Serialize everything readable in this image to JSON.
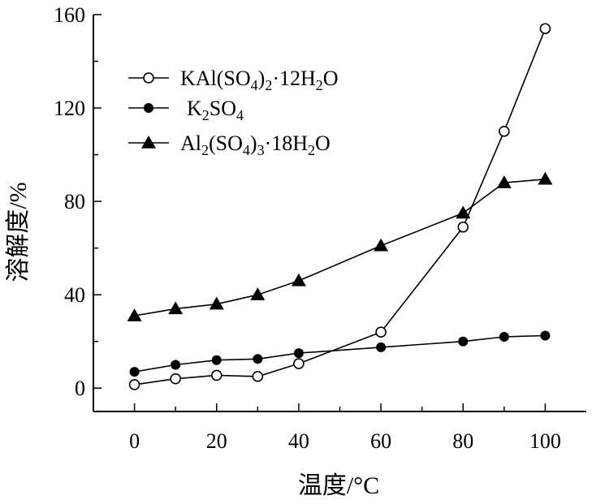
{
  "chart_data": {
    "type": "line",
    "xlabel": "温度/°C",
    "ylabel": "溶解度/%",
    "xlim": [
      -10,
      110
    ],
    "ylim": [
      -10,
      160
    ],
    "x_ticks": [
      "0",
      "20",
      "40",
      "60",
      "80",
      "100"
    ],
    "y_ticks": [
      "0",
      "40",
      "80",
      "120",
      "160"
    ],
    "grid": false,
    "legend_position": "top-left",
    "series": [
      {
        "name": "KAl(SO4)2·12H2O",
        "legend_parts": [
          [
            "KAl(SO",
            ""
          ],
          [
            "4",
            "sub"
          ],
          [
            ")",
            ""
          ],
          [
            "2",
            "sub"
          ],
          [
            "·12H",
            ""
          ],
          [
            "2",
            "sub"
          ],
          [
            "O",
            ""
          ]
        ],
        "marker": "open-circle",
        "x": [
          0,
          10,
          20,
          30,
          40,
          60,
          80,
          90,
          100
        ],
        "y": [
          1.5,
          4,
          5.5,
          5,
          10.5,
          24,
          69,
          110,
          154
        ]
      },
      {
        "name": "K2SO4",
        "legend_parts": [
          [
            "K",
            ""
          ],
          [
            "2",
            "sub"
          ],
          [
            "SO",
            ""
          ],
          [
            "4",
            "sub"
          ]
        ],
        "marker": "filled-circle",
        "x": [
          0,
          10,
          20,
          30,
          40,
          60,
          80,
          90,
          100
        ],
        "y": [
          7,
          10,
          12,
          12.5,
          15,
          17.5,
          20,
          22,
          22.5
        ]
      },
      {
        "name": "Al2(SO4)3·18H2O",
        "legend_parts": [
          [
            "Al",
            ""
          ],
          [
            "2",
            "sub"
          ],
          [
            "(SO",
            ""
          ],
          [
            "4",
            "sub"
          ],
          [
            ")",
            ""
          ],
          [
            "3",
            "sub"
          ],
          [
            "·18H",
            ""
          ],
          [
            "2",
            "sub"
          ],
          [
            "O",
            ""
          ]
        ],
        "marker": "filled-triangle",
        "x": [
          0,
          10,
          20,
          30,
          40,
          60,
          80,
          90,
          100
        ],
        "y": [
          31,
          34,
          36,
          40,
          46,
          61,
          75,
          88,
          89.5
        ]
      }
    ]
  }
}
